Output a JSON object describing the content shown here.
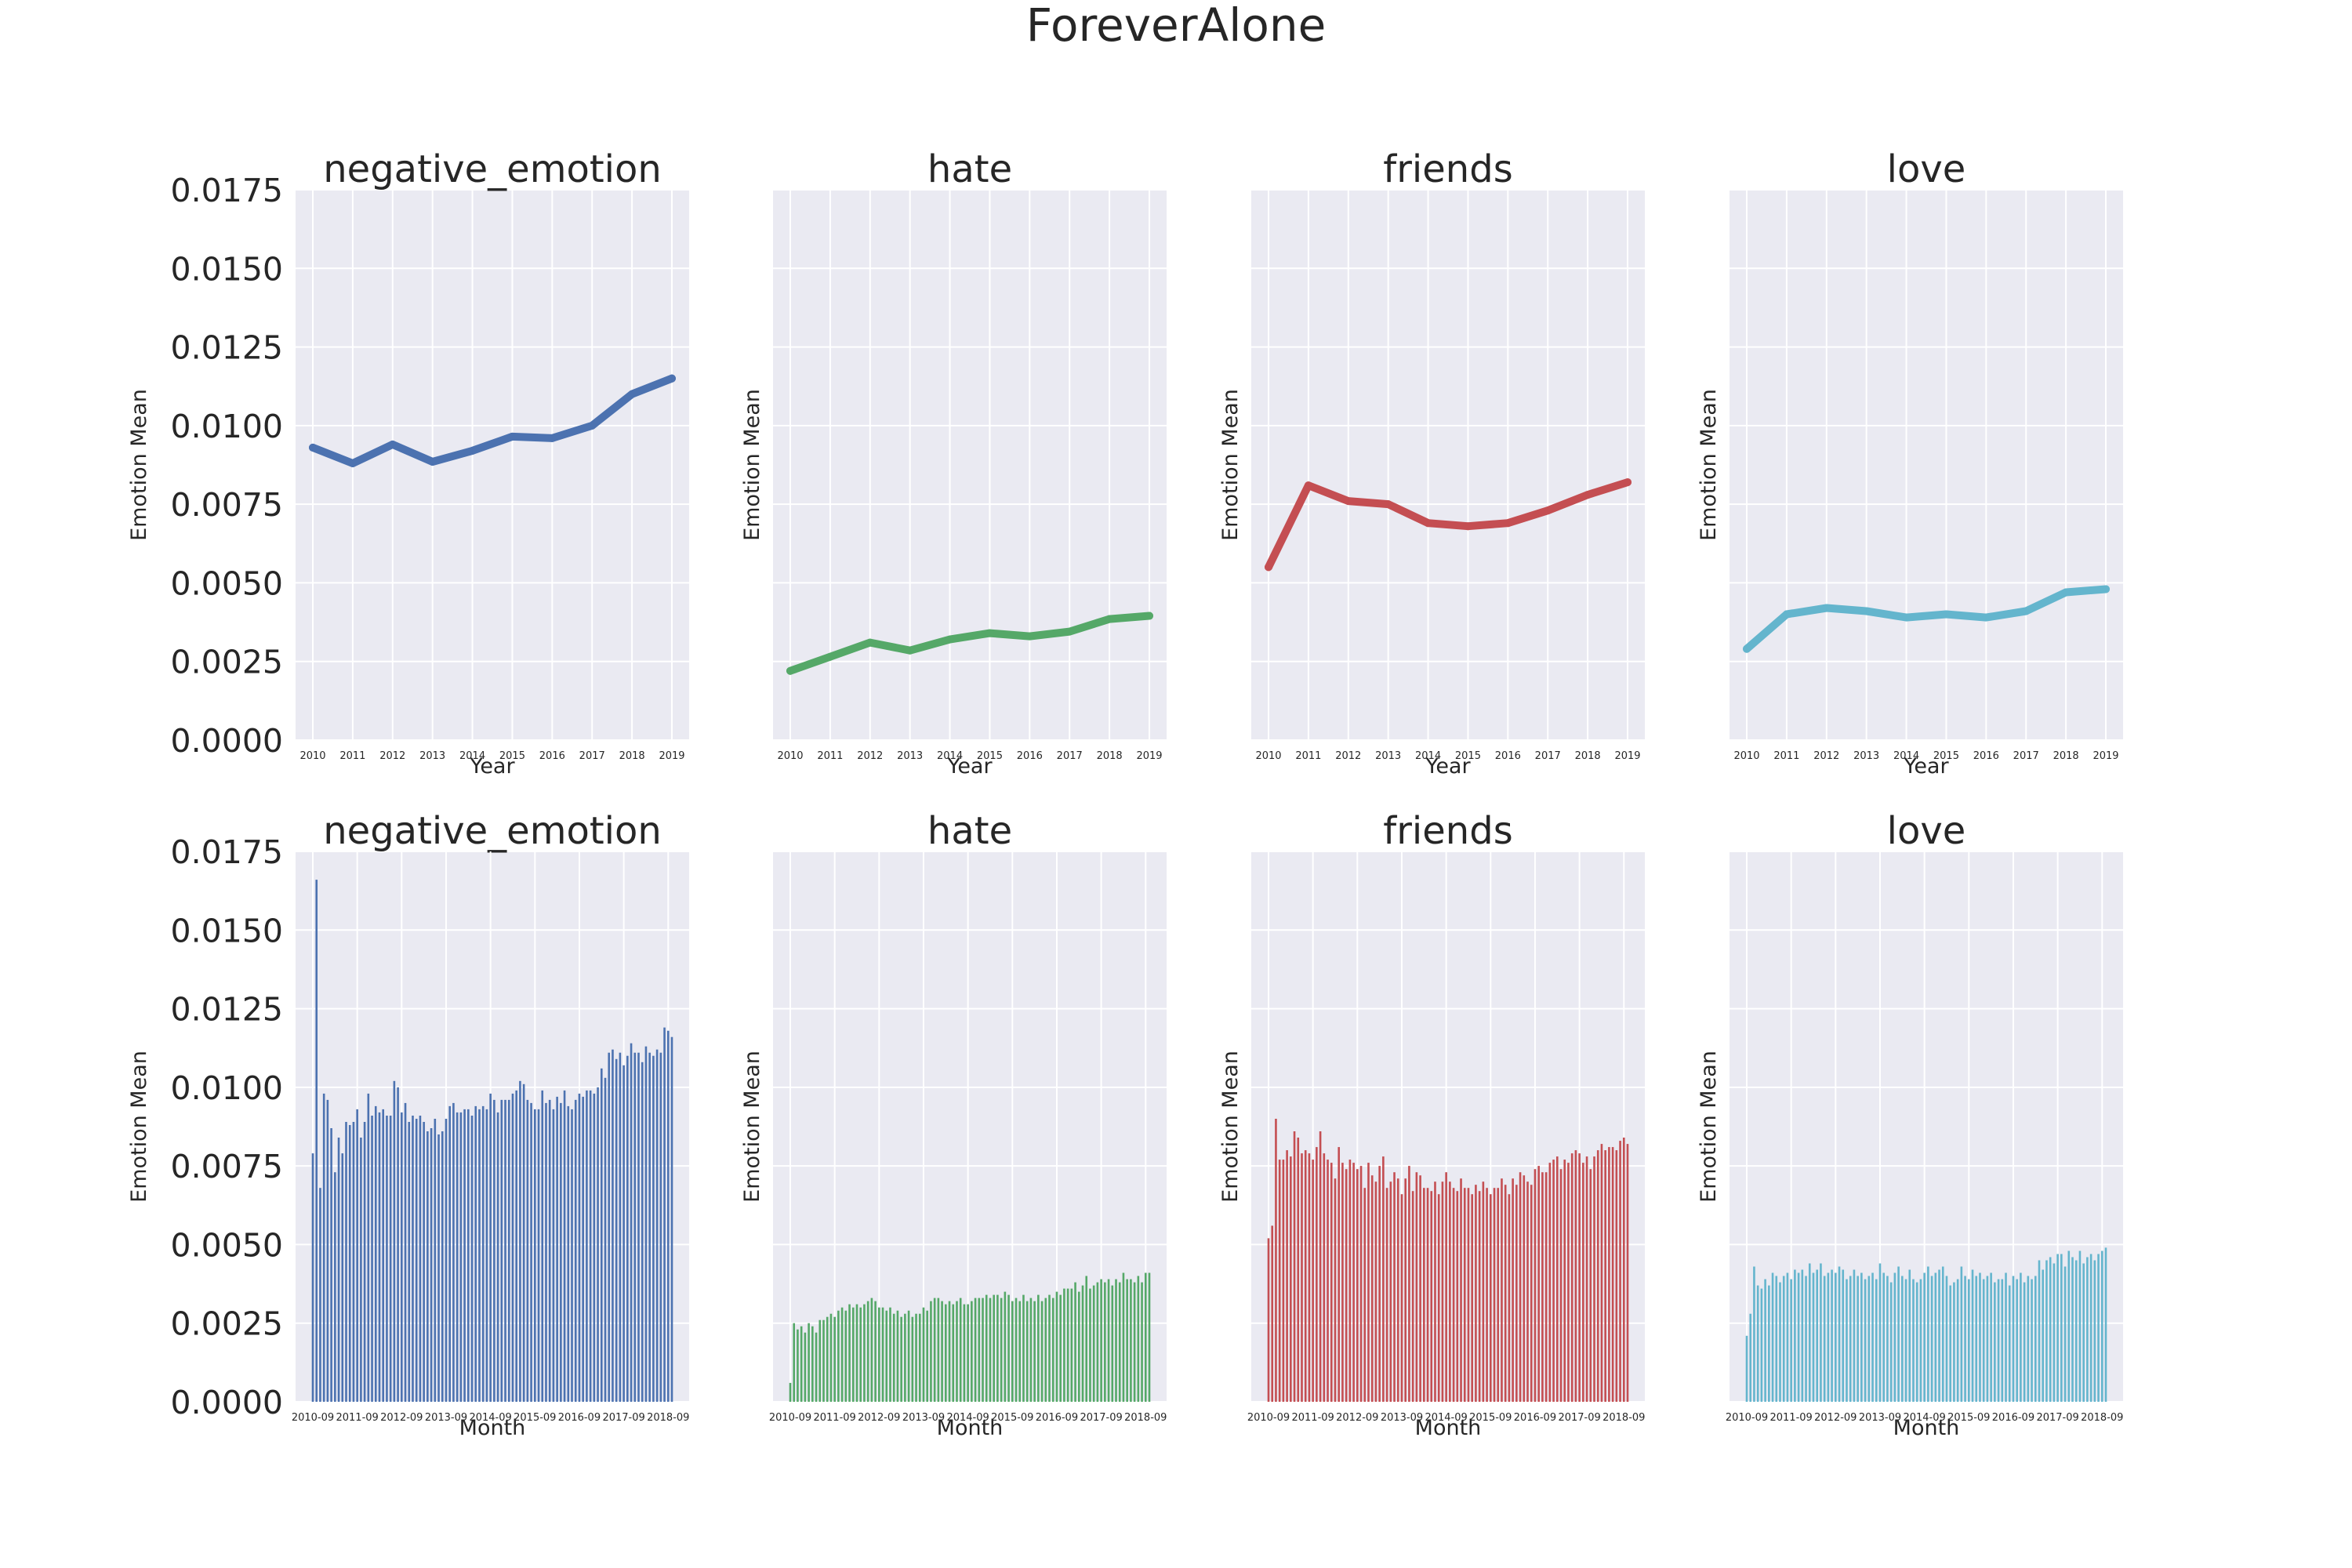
{
  "figure": {
    "title": "ForeverAlone"
  },
  "colors": {
    "negative_emotion": "#4c72b0",
    "hate": "#55a868",
    "friends": "#c44e52",
    "love": "#64b5cd",
    "panel_background": "#eaeaf2",
    "grid": "#ffffff"
  },
  "chart_data": [
    {
      "type": "line",
      "title": "negative_emotion",
      "xlabel": "Year",
      "ylabel": "Emotion Mean",
      "color": "#4c72b0",
      "x": [
        "2010",
        "2011",
        "2012",
        "2013",
        "2014",
        "2015",
        "2016",
        "2017",
        "2018",
        "2019"
      ],
      "y": [
        0.0093,
        0.0088,
        0.0094,
        0.00885,
        0.0092,
        0.00965,
        0.0096,
        0.01,
        0.011,
        0.0115
      ],
      "ylim": [
        0,
        0.0175
      ],
      "yticks": [
        "0.0000",
        "0.0025",
        "0.0050",
        "0.0075",
        "0.0100",
        "0.0125",
        "0.0150",
        "0.0175"
      ],
      "grid": true
    },
    {
      "type": "line",
      "title": "hate",
      "xlabel": "Year",
      "ylabel": "Emotion Mean",
      "color": "#55a868",
      "x": [
        "2010",
        "2011",
        "2012",
        "2013",
        "2014",
        "2015",
        "2016",
        "2017",
        "2018",
        "2019"
      ],
      "y": [
        0.0022,
        0.00265,
        0.0031,
        0.00285,
        0.0032,
        0.0034,
        0.0033,
        0.00345,
        0.00385,
        0.00395
      ],
      "ylim": [
        0,
        0.0175
      ],
      "grid": true
    },
    {
      "type": "line",
      "title": "friends",
      "xlabel": "Year",
      "ylabel": "Emotion Mean",
      "color": "#c44e52",
      "x": [
        "2010",
        "2011",
        "2012",
        "2013",
        "2014",
        "2015",
        "2016",
        "2017",
        "2018",
        "2019"
      ],
      "y": [
        0.0055,
        0.0081,
        0.0076,
        0.0075,
        0.0069,
        0.0068,
        0.0069,
        0.0073,
        0.0078,
        0.0082
      ],
      "ylim": [
        0,
        0.0175
      ],
      "grid": true
    },
    {
      "type": "line",
      "title": "love",
      "xlabel": "Year",
      "ylabel": "Emotion Mean",
      "color": "#64b5cd",
      "x": [
        "2010",
        "2011",
        "2012",
        "2013",
        "2014",
        "2015",
        "2016",
        "2017",
        "2018",
        "2019"
      ],
      "y": [
        0.0029,
        0.004,
        0.0042,
        0.0041,
        0.0039,
        0.004,
        0.0039,
        0.0041,
        0.0047,
        0.0048
      ],
      "ylim": [
        0,
        0.0175
      ],
      "grid": true
    },
    {
      "type": "bar",
      "title": "negative_emotion",
      "xlabel": "Month",
      "ylabel": "Emotion Mean",
      "color": "#4c72b0",
      "xticks": [
        "2010-09",
        "2011-09",
        "2012-09",
        "2013-09",
        "2014-09",
        "2015-09",
        "2016-09",
        "2017-09",
        "2018-09"
      ],
      "values": [
        0.0079,
        0.0166,
        0.0068,
        0.0098,
        0.0096,
        0.0087,
        0.0073,
        0.0084,
        0.0079,
        0.0089,
        0.0088,
        0.0089,
        0.0093,
        0.0084,
        0.0089,
        0.0098,
        0.0091,
        0.0094,
        0.0092,
        0.0093,
        0.0091,
        0.0091,
        0.0102,
        0.01,
        0.0092,
        0.0095,
        0.0089,
        0.0091,
        0.009,
        0.0091,
        0.0089,
        0.0086,
        0.0087,
        0.009,
        0.0085,
        0.0086,
        0.009,
        0.0094,
        0.0095,
        0.0092,
        0.0092,
        0.0093,
        0.0093,
        0.0091,
        0.0094,
        0.0093,
        0.0094,
        0.0093,
        0.0098,
        0.0096,
        0.0092,
        0.0096,
        0.0096,
        0.0096,
        0.0098,
        0.0099,
        0.0102,
        0.0101,
        0.0096,
        0.0095,
        0.0093,
        0.0093,
        0.0099,
        0.0095,
        0.0096,
        0.0093,
        0.0097,
        0.0095,
        0.0099,
        0.0094,
        0.0093,
        0.0096,
        0.0098,
        0.0097,
        0.0099,
        0.0099,
        0.0098,
        0.01,
        0.0106,
        0.0103,
        0.0111,
        0.0112,
        0.0109,
        0.0111,
        0.0107,
        0.011,
        0.0114,
        0.0111,
        0.0111,
        0.0108,
        0.0113,
        0.0111,
        0.011,
        0.0112,
        0.0111,
        0.0119,
        0.0118,
        0.0116
      ],
      "ylim": [
        0,
        0.0175
      ],
      "yticks": [
        "0.0000",
        "0.0025",
        "0.0050",
        "0.0075",
        "0.0100",
        "0.0125",
        "0.0150",
        "0.0175"
      ],
      "grid": true
    },
    {
      "type": "bar",
      "title": "hate",
      "xlabel": "Month",
      "ylabel": "Emotion Mean",
      "color": "#55a868",
      "xticks": [
        "2010-09",
        "2011-09",
        "2012-09",
        "2013-09",
        "2014-09",
        "2015-09",
        "2016-09",
        "2017-09",
        "2018-09"
      ],
      "values": [
        0.0006,
        0.0025,
        0.0023,
        0.0024,
        0.0022,
        0.0025,
        0.0024,
        0.0022,
        0.0026,
        0.0026,
        0.0027,
        0.0028,
        0.0027,
        0.0029,
        0.003,
        0.0029,
        0.0031,
        0.003,
        0.0031,
        0.003,
        0.0031,
        0.0032,
        0.0033,
        0.0032,
        0.003,
        0.003,
        0.0029,
        0.003,
        0.0028,
        0.0029,
        0.0027,
        0.0028,
        0.0029,
        0.0027,
        0.0028,
        0.0028,
        0.003,
        0.0029,
        0.0032,
        0.0033,
        0.0033,
        0.0032,
        0.0031,
        0.0032,
        0.0031,
        0.0032,
        0.0033,
        0.0031,
        0.0031,
        0.0032,
        0.0033,
        0.0033,
        0.0033,
        0.0034,
        0.0033,
        0.0034,
        0.0034,
        0.0033,
        0.0035,
        0.0034,
        0.0032,
        0.0033,
        0.0032,
        0.0034,
        0.0032,
        0.0033,
        0.0032,
        0.0034,
        0.0032,
        0.0033,
        0.0034,
        0.0033,
        0.0035,
        0.0034,
        0.0036,
        0.0036,
        0.0036,
        0.0038,
        0.0035,
        0.0037,
        0.004,
        0.0036,
        0.0037,
        0.0038,
        0.0039,
        0.0038,
        0.0039,
        0.0037,
        0.0039,
        0.0038,
        0.0041,
        0.0039,
        0.0039,
        0.0038,
        0.004,
        0.0038,
        0.0041,
        0.0041
      ],
      "ylim": [
        0,
        0.0175
      ],
      "grid": true
    },
    {
      "type": "bar",
      "title": "friends",
      "xlabel": "Month",
      "ylabel": "Emotion Mean",
      "color": "#c44e52",
      "xticks": [
        "2010-09",
        "2011-09",
        "2012-09",
        "2013-09",
        "2014-09",
        "2015-09",
        "2016-09",
        "2017-09",
        "2018-09"
      ],
      "values": [
        0.0052,
        0.0056,
        0.009,
        0.0077,
        0.0077,
        0.008,
        0.0078,
        0.0086,
        0.0084,
        0.0079,
        0.008,
        0.0079,
        0.0077,
        0.0081,
        0.0086,
        0.0079,
        0.0077,
        0.0076,
        0.0071,
        0.0081,
        0.0076,
        0.0074,
        0.0077,
        0.0076,
        0.0074,
        0.0075,
        0.0068,
        0.0076,
        0.0072,
        0.007,
        0.0075,
        0.0078,
        0.0068,
        0.007,
        0.0073,
        0.0071,
        0.0066,
        0.0071,
        0.0075,
        0.0067,
        0.0073,
        0.0072,
        0.0068,
        0.0068,
        0.0067,
        0.007,
        0.0066,
        0.007,
        0.0073,
        0.007,
        0.0068,
        0.0067,
        0.0071,
        0.0068,
        0.0068,
        0.0066,
        0.0069,
        0.0067,
        0.007,
        0.0068,
        0.0066,
        0.0068,
        0.0068,
        0.0071,
        0.0069,
        0.0066,
        0.0071,
        0.0069,
        0.0073,
        0.0072,
        0.007,
        0.0069,
        0.0074,
        0.0075,
        0.0073,
        0.0073,
        0.0076,
        0.0077,
        0.0078,
        0.0074,
        0.0077,
        0.0076,
        0.0079,
        0.008,
        0.0079,
        0.0076,
        0.0078,
        0.0074,
        0.0078,
        0.008,
        0.0082,
        0.008,
        0.0081,
        0.0081,
        0.008,
        0.0083,
        0.0084,
        0.0082
      ],
      "ylim": [
        0,
        0.0175
      ],
      "grid": true
    },
    {
      "type": "bar",
      "title": "love",
      "xlabel": "Month",
      "ylabel": "Emotion Mean",
      "color": "#64b5cd",
      "xticks": [
        "2010-09",
        "2011-09",
        "2012-09",
        "2013-09",
        "2014-09",
        "2015-09",
        "2016-09",
        "2017-09",
        "2018-09"
      ],
      "values": [
        0.0021,
        0.0028,
        0.0043,
        0.0037,
        0.0036,
        0.0039,
        0.0037,
        0.0041,
        0.004,
        0.0038,
        0.004,
        0.0041,
        0.0039,
        0.0042,
        0.0041,
        0.0042,
        0.004,
        0.0044,
        0.0041,
        0.0042,
        0.0044,
        0.004,
        0.0041,
        0.0042,
        0.0041,
        0.0043,
        0.0042,
        0.0039,
        0.004,
        0.0042,
        0.004,
        0.0041,
        0.0039,
        0.004,
        0.0041,
        0.0039,
        0.0044,
        0.0041,
        0.004,
        0.0038,
        0.0041,
        0.0043,
        0.004,
        0.0039,
        0.0042,
        0.0039,
        0.0038,
        0.0039,
        0.0041,
        0.0043,
        0.004,
        0.0041,
        0.0042,
        0.0043,
        0.004,
        0.0037,
        0.0038,
        0.0039,
        0.0043,
        0.004,
        0.0039,
        0.0042,
        0.004,
        0.0041,
        0.0039,
        0.004,
        0.0041,
        0.0038,
        0.0039,
        0.0039,
        0.0041,
        0.0037,
        0.004,
        0.0039,
        0.0041,
        0.0038,
        0.004,
        0.0039,
        0.004,
        0.0045,
        0.0042,
        0.0045,
        0.0046,
        0.0044,
        0.0047,
        0.0047,
        0.0043,
        0.0048,
        0.0046,
        0.0045,
        0.0048,
        0.0044,
        0.0046,
        0.0047,
        0.0045,
        0.0047,
        0.0048,
        0.0049
      ],
      "ylim": [
        0,
        0.0175
      ],
      "grid": true
    }
  ]
}
